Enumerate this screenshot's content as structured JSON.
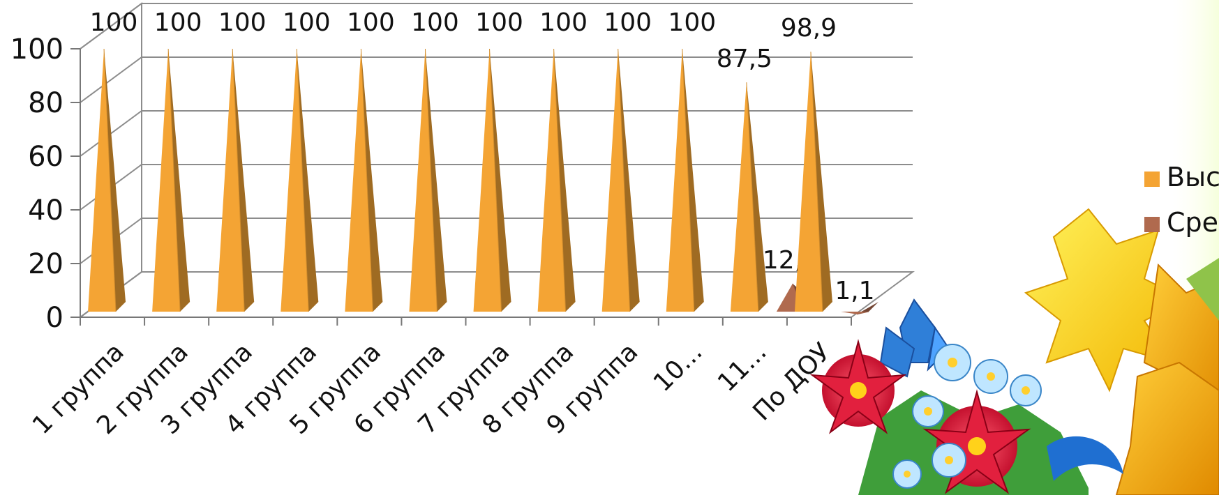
{
  "chart_data": {
    "type": "bar",
    "shape": "pyramid-3d",
    "categories": [
      "1 группа",
      "2 группа",
      "3 группа",
      "4 группа",
      "5 группа",
      "6 группа",
      "7 группа",
      "8 группа",
      "9 группа",
      "10...",
      "11...",
      "По ДОУ"
    ],
    "series": [
      {
        "name": "Высокий",
        "color": "#F4A434",
        "values": [
          100,
          100,
          100,
          100,
          100,
          100,
          100,
          100,
          100,
          100,
          87.5,
          98.9
        ],
        "labels": [
          "100",
          "100",
          "100",
          "100",
          "100",
          "100",
          "100",
          "100",
          "100",
          "100",
          "87,5",
          "98,9"
        ]
      },
      {
        "name": "Средний",
        "color": "#B06A4E",
        "values": [
          null,
          null,
          null,
          null,
          null,
          null,
          null,
          null,
          null,
          null,
          12.5,
          1.1
        ],
        "labels": [
          "",
          "",
          "",
          "",
          "",
          "",
          "",
          "",
          "",
          "",
          "12,5",
          "1,1"
        ]
      }
    ],
    "ylim": [
      0,
      100
    ],
    "yticks": [
      "0",
      "20",
      "40",
      "60",
      "80",
      "100"
    ],
    "grid": true,
    "legend": "right"
  }
}
